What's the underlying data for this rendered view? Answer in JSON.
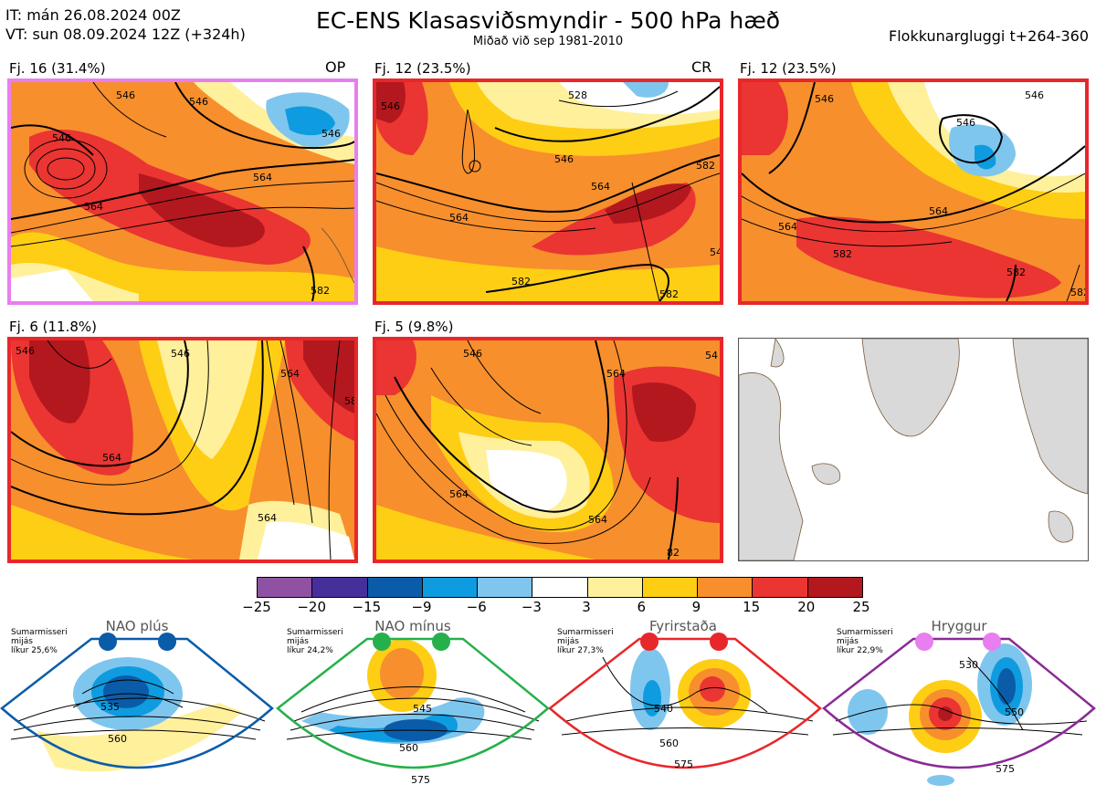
{
  "header": {
    "it_line": "IT: mán 26.08.2024 00Z",
    "vt_line": "VT: sun 08.09.2024 12Z  (+324h)",
    "title": "EC-ENS Klasasviðsmyndir - 500 hPa hæð",
    "subtitle": "Miðað við sep 1981-2010",
    "window": "Flokkunargluggi t+264-360"
  },
  "clusters": [
    {
      "label": "Fj. 16 (31.4%)",
      "tag": "OP",
      "border": "#e97ef0",
      "contours": [
        "546",
        "546",
        "546",
        "564",
        "564",
        "582",
        "546"
      ]
    },
    {
      "label": "Fj. 12 (23.5%)",
      "tag": "CR",
      "border": "#e8272a",
      "contours": [
        "528",
        "546",
        "546",
        "564",
        "564",
        "582",
        "582",
        "582",
        "54"
      ]
    },
    {
      "label": "Fj. 12 (23.5%)",
      "tag": "",
      "border": "#e8272a",
      "contours": [
        "546",
        "546",
        "564",
        "564",
        "582",
        "582",
        "582",
        "546"
      ]
    },
    {
      "label": "Fj. 6 (11.8%)",
      "tag": "",
      "border": "#e8272a",
      "contours": [
        "546",
        "546",
        "564",
        "564",
        "564",
        "58"
      ]
    },
    {
      "label": "Fj. 5 (9.8%)",
      "tag": "",
      "border": "#e8272a",
      "contours": [
        "546",
        "564",
        "564",
        "564",
        "82",
        "54"
      ]
    }
  ],
  "colorbar": {
    "ticks": [
      "−25",
      "−20",
      "−15",
      "−9",
      "−6",
      "−3",
      "3",
      "6",
      "9",
      "15",
      "20",
      "25"
    ],
    "colors": [
      "#8f52a2",
      "#472f9b",
      "#0b5ca8",
      "#0f9bdf",
      "#7ec6ee",
      "#ffffff",
      "#fff09c",
      "#fece14",
      "#f78f2d",
      "#ea3532",
      "#b2181e"
    ]
  },
  "regimes": [
    {
      "name": "NAO plús",
      "season": "Sumarmisseri",
      "mean": "mijás",
      "prob": "líkur 25,6%",
      "dot": "#0b5ca8",
      "border": "#0b5ca8",
      "labels": [
        "535",
        "560"
      ]
    },
    {
      "name": "NAO mínus",
      "season": "Sumarmisseri",
      "mean": "mijás",
      "prob": "líkur 24,2%",
      "dot": "#26b04b",
      "border": "#26b04b",
      "labels": [
        "545",
        "560",
        "575"
      ]
    },
    {
      "name": "Fyrirstaða",
      "season": "Sumarmisseri",
      "mean": "mijás",
      "prob": "líkur 27,3%",
      "dot": "#e8272a",
      "border": "#e8272a",
      "labels": [
        "540",
        "560",
        "575"
      ]
    },
    {
      "name": "Hryggur",
      "season": "Sumarmisseri",
      "mean": "mijás",
      "prob": "líkur 22,9%",
      "dot": "#e97ef0",
      "border": "#8a2b95",
      "labels": [
        "530",
        "550",
        "575"
      ]
    }
  ]
}
